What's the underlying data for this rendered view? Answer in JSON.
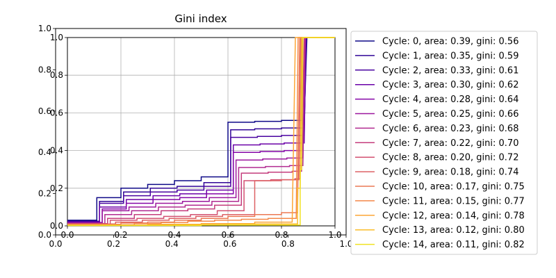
{
  "chart_data": {
    "type": "line",
    "title": "Gini index",
    "xlabel": "",
    "ylabel": "",
    "xlim": [
      0.0,
      1.0
    ],
    "ylim": [
      0.0,
      1.0
    ],
    "grid": true,
    "legend_position": "right",
    "x_ticks_outer": [
      "0.0",
      "0.2",
      "0.4",
      "0.6",
      "0.8",
      "1.0"
    ],
    "x_ticks_inner": [
      "0.0",
      "0.2",
      "0.4",
      "0.6",
      "0.8",
      "1.0"
    ],
    "y_ticks_outer": [
      "0.0",
      "0.2",
      "0.4",
      "0.6",
      "0.8",
      "1.0"
    ],
    "y_ticks_inner": [
      "0.0",
      "0.2",
      "0.4",
      "0.6",
      "0.8",
      "1.0"
    ],
    "series": [
      {
        "name": "Cycle: 0, area: 0.39, gini: 0.56",
        "color": "#0d0887",
        "points": [
          [
            0.0,
            0.03
          ],
          [
            0.11,
            0.03
          ],
          [
            0.11,
            0.15
          ],
          [
            0.2,
            0.15
          ],
          [
            0.2,
            0.2
          ],
          [
            0.3,
            0.2
          ],
          [
            0.3,
            0.22
          ],
          [
            0.4,
            0.22
          ],
          [
            0.4,
            0.24
          ],
          [
            0.5,
            0.24
          ],
          [
            0.5,
            0.26
          ],
          [
            0.6,
            0.26
          ],
          [
            0.6,
            0.55
          ],
          [
            0.7,
            0.55
          ],
          [
            0.7,
            0.555
          ],
          [
            0.8,
            0.555
          ],
          [
            0.8,
            0.56
          ],
          [
            0.885,
            0.56
          ],
          [
            0.895,
            1.0
          ],
          [
            1.0,
            1.0
          ]
        ]
      },
      {
        "name": "Cycle: 1, area: 0.35, gini: 0.59",
        "color": "#300597",
        "points": [
          [
            0.0,
            0.025
          ],
          [
            0.12,
            0.025
          ],
          [
            0.12,
            0.13
          ],
          [
            0.21,
            0.13
          ],
          [
            0.21,
            0.18
          ],
          [
            0.31,
            0.18
          ],
          [
            0.31,
            0.2
          ],
          [
            0.41,
            0.2
          ],
          [
            0.41,
            0.21
          ],
          [
            0.51,
            0.21
          ],
          [
            0.51,
            0.23
          ],
          [
            0.61,
            0.23
          ],
          [
            0.61,
            0.51
          ],
          [
            0.7,
            0.51
          ],
          [
            0.7,
            0.515
          ],
          [
            0.8,
            0.515
          ],
          [
            0.8,
            0.52
          ],
          [
            0.885,
            0.52
          ],
          [
            0.893,
            1.0
          ],
          [
            1.0,
            1.0
          ]
        ]
      },
      {
        "name": "Cycle: 2, area: 0.33, gini: 0.61",
        "color": "#4903a0",
        "points": [
          [
            0.0,
            0.022
          ],
          [
            0.12,
            0.022
          ],
          [
            0.12,
            0.12
          ],
          [
            0.21,
            0.12
          ],
          [
            0.21,
            0.16
          ],
          [
            0.31,
            0.16
          ],
          [
            0.31,
            0.18
          ],
          [
            0.41,
            0.18
          ],
          [
            0.41,
            0.19
          ],
          [
            0.51,
            0.19
          ],
          [
            0.51,
            0.21
          ],
          [
            0.61,
            0.21
          ],
          [
            0.61,
            0.47
          ],
          [
            0.71,
            0.47
          ],
          [
            0.71,
            0.475
          ],
          [
            0.8,
            0.475
          ],
          [
            0.8,
            0.48
          ],
          [
            0.885,
            0.48
          ],
          [
            0.892,
            1.0
          ],
          [
            1.0,
            1.0
          ]
        ]
      },
      {
        "name": "Cycle: 3, area: 0.30, gini: 0.62",
        "color": "#6a00a8",
        "points": [
          [
            0.0,
            0.02
          ],
          [
            0.12,
            0.02
          ],
          [
            0.12,
            0.1
          ],
          [
            0.22,
            0.1
          ],
          [
            0.22,
            0.14
          ],
          [
            0.32,
            0.14
          ],
          [
            0.32,
            0.16
          ],
          [
            0.42,
            0.16
          ],
          [
            0.42,
            0.17
          ],
          [
            0.52,
            0.17
          ],
          [
            0.52,
            0.19
          ],
          [
            0.62,
            0.19
          ],
          [
            0.62,
            0.43
          ],
          [
            0.72,
            0.43
          ],
          [
            0.72,
            0.435
          ],
          [
            0.81,
            0.435
          ],
          [
            0.81,
            0.44
          ],
          [
            0.885,
            0.44
          ],
          [
            0.891,
            1.0
          ],
          [
            1.0,
            1.0
          ]
        ]
      },
      {
        "name": "Cycle: 4, area: 0.28, gini: 0.64",
        "color": "#8405a7",
        "points": [
          [
            0.0,
            0.018
          ],
          [
            0.13,
            0.018
          ],
          [
            0.13,
            0.09
          ],
          [
            0.22,
            0.09
          ],
          [
            0.22,
            0.12
          ],
          [
            0.32,
            0.12
          ],
          [
            0.32,
            0.14
          ],
          [
            0.42,
            0.14
          ],
          [
            0.42,
            0.15
          ],
          [
            0.52,
            0.15
          ],
          [
            0.52,
            0.17
          ],
          [
            0.62,
            0.17
          ],
          [
            0.62,
            0.39
          ],
          [
            0.72,
            0.39
          ],
          [
            0.72,
            0.395
          ],
          [
            0.81,
            0.395
          ],
          [
            0.81,
            0.4
          ],
          [
            0.88,
            0.4
          ],
          [
            0.89,
            1.0
          ],
          [
            1.0,
            1.0
          ]
        ]
      },
      {
        "name": "Cycle: 5, area: 0.25, gini: 0.66",
        "color": "#9c179e",
        "points": [
          [
            0.0,
            0.015
          ],
          [
            0.13,
            0.015
          ],
          [
            0.13,
            0.08
          ],
          [
            0.23,
            0.08
          ],
          [
            0.23,
            0.1
          ],
          [
            0.33,
            0.1
          ],
          [
            0.33,
            0.12
          ],
          [
            0.43,
            0.12
          ],
          [
            0.43,
            0.13
          ],
          [
            0.53,
            0.13
          ],
          [
            0.53,
            0.15
          ],
          [
            0.63,
            0.15
          ],
          [
            0.63,
            0.35
          ],
          [
            0.73,
            0.35
          ],
          [
            0.73,
            0.355
          ],
          [
            0.82,
            0.355
          ],
          [
            0.82,
            0.36
          ],
          [
            0.88,
            0.36
          ],
          [
            0.889,
            1.0
          ],
          [
            1.0,
            1.0
          ]
        ]
      },
      {
        "name": "Cycle: 6, area: 0.23, gini: 0.68",
        "color": "#b12a90",
        "points": [
          [
            0.0,
            0.013
          ],
          [
            0.14,
            0.013
          ],
          [
            0.14,
            0.06
          ],
          [
            0.24,
            0.06
          ],
          [
            0.24,
            0.08
          ],
          [
            0.34,
            0.08
          ],
          [
            0.34,
            0.1
          ],
          [
            0.44,
            0.1
          ],
          [
            0.44,
            0.11
          ],
          [
            0.54,
            0.11
          ],
          [
            0.54,
            0.13
          ],
          [
            0.64,
            0.13
          ],
          [
            0.64,
            0.31
          ],
          [
            0.74,
            0.31
          ],
          [
            0.74,
            0.315
          ],
          [
            0.83,
            0.315
          ],
          [
            0.83,
            0.32
          ],
          [
            0.88,
            0.32
          ],
          [
            0.888,
            1.0
          ],
          [
            1.0,
            1.0
          ]
        ]
      },
      {
        "name": "Cycle: 7, area: 0.22, gini: 0.70",
        "color": "#c43c7c",
        "points": [
          [
            0.0,
            0.012
          ],
          [
            0.15,
            0.012
          ],
          [
            0.15,
            0.04
          ],
          [
            0.25,
            0.04
          ],
          [
            0.25,
            0.06
          ],
          [
            0.35,
            0.06
          ],
          [
            0.35,
            0.08
          ],
          [
            0.45,
            0.08
          ],
          [
            0.45,
            0.09
          ],
          [
            0.55,
            0.09
          ],
          [
            0.55,
            0.11
          ],
          [
            0.65,
            0.11
          ],
          [
            0.65,
            0.28
          ],
          [
            0.75,
            0.28
          ],
          [
            0.75,
            0.285
          ],
          [
            0.84,
            0.285
          ],
          [
            0.84,
            0.29
          ],
          [
            0.875,
            0.29
          ],
          [
            0.885,
            1.0
          ],
          [
            1.0,
            1.0
          ]
        ]
      },
      {
        "name": "Cycle: 8, area: 0.20, gini: 0.72",
        "color": "#d35171",
        "points": [
          [
            0.0,
            0.01
          ],
          [
            0.16,
            0.01
          ],
          [
            0.16,
            0.03
          ],
          [
            0.26,
            0.03
          ],
          [
            0.26,
            0.04
          ],
          [
            0.36,
            0.04
          ],
          [
            0.36,
            0.05
          ],
          [
            0.46,
            0.05
          ],
          [
            0.46,
            0.06
          ],
          [
            0.56,
            0.06
          ],
          [
            0.56,
            0.08
          ],
          [
            0.66,
            0.08
          ],
          [
            0.66,
            0.24
          ],
          [
            0.76,
            0.24
          ],
          [
            0.76,
            0.245
          ],
          [
            0.85,
            0.245
          ],
          [
            0.85,
            0.25
          ],
          [
            0.87,
            0.25
          ],
          [
            0.878,
            1.0
          ],
          [
            1.0,
            1.0
          ]
        ]
      },
      {
        "name": "Cycle: 9, area: 0.18, gini: 0.74",
        "color": "#de6164",
        "points": [
          [
            0.0,
            0.01
          ],
          [
            0.18,
            0.01
          ],
          [
            0.18,
            0.02
          ],
          [
            0.28,
            0.02
          ],
          [
            0.28,
            0.03
          ],
          [
            0.38,
            0.03
          ],
          [
            0.38,
            0.04
          ],
          [
            0.48,
            0.04
          ],
          [
            0.48,
            0.05
          ],
          [
            0.58,
            0.05
          ],
          [
            0.58,
            0.06
          ],
          [
            0.7,
            0.06
          ],
          [
            0.7,
            0.24
          ],
          [
            0.8,
            0.24
          ],
          [
            0.8,
            0.245
          ],
          [
            0.865,
            0.245
          ],
          [
            0.872,
            1.0
          ],
          [
            1.0,
            1.0
          ]
        ]
      },
      {
        "name": "Cycle: 10, area: 0.17, gini: 0.75",
        "color": "#ec7853",
        "points": [
          [
            0.0,
            0.008
          ],
          [
            0.2,
            0.008
          ],
          [
            0.2,
            0.015
          ],
          [
            0.3,
            0.015
          ],
          [
            0.3,
            0.02
          ],
          [
            0.4,
            0.02
          ],
          [
            0.4,
            0.03
          ],
          [
            0.5,
            0.03
          ],
          [
            0.5,
            0.04
          ],
          [
            0.6,
            0.04
          ],
          [
            0.6,
            0.05
          ],
          [
            0.7,
            0.05
          ],
          [
            0.7,
            0.06
          ],
          [
            0.8,
            0.06
          ],
          [
            0.8,
            0.07
          ],
          [
            0.86,
            0.07
          ],
          [
            0.868,
            1.0
          ],
          [
            1.0,
            1.0
          ]
        ]
      },
      {
        "name": "Cycle: 11, area: 0.15, gini: 0.77",
        "color": "#f48849",
        "points": [
          [
            0.0,
            0.006
          ],
          [
            0.25,
            0.006
          ],
          [
            0.25,
            0.012
          ],
          [
            0.35,
            0.012
          ],
          [
            0.35,
            0.018
          ],
          [
            0.45,
            0.018
          ],
          [
            0.45,
            0.025
          ],
          [
            0.55,
            0.025
          ],
          [
            0.55,
            0.03
          ],
          [
            0.65,
            0.03
          ],
          [
            0.65,
            0.035
          ],
          [
            0.75,
            0.035
          ],
          [
            0.75,
            0.04
          ],
          [
            0.855,
            0.04
          ],
          [
            0.862,
            1.0
          ],
          [
            1.0,
            1.0
          ]
        ]
      },
      {
        "name": "Cycle: 12, area: 0.14, gini: 0.78",
        "color": "#fca636",
        "points": [
          [
            0.0,
            0.004
          ],
          [
            0.3,
            0.004
          ],
          [
            0.3,
            0.008
          ],
          [
            0.5,
            0.008
          ],
          [
            0.5,
            0.012
          ],
          [
            0.7,
            0.012
          ],
          [
            0.7,
            0.02
          ],
          [
            0.84,
            0.02
          ],
          [
            0.852,
            1.0
          ],
          [
            1.0,
            1.0
          ]
        ]
      },
      {
        "name": "Cycle: 13, area: 0.12, gini: 0.80",
        "color": "#fbbc29",
        "points": [
          [
            0.0,
            0.003
          ],
          [
            0.4,
            0.003
          ],
          [
            0.4,
            0.006
          ],
          [
            0.6,
            0.006
          ],
          [
            0.6,
            0.01
          ],
          [
            0.86,
            0.01
          ],
          [
            0.86,
            0.2
          ],
          [
            0.87,
            0.2
          ],
          [
            0.875,
            1.0
          ],
          [
            1.0,
            1.0
          ]
        ]
      },
      {
        "name": "Cycle: 14, area: 0.11, gini: 0.82",
        "color": "#f0e221",
        "points": [
          [
            0.0,
            0.002
          ],
          [
            0.5,
            0.002
          ],
          [
            0.5,
            0.004
          ],
          [
            0.87,
            0.004
          ],
          [
            0.87,
            0.3
          ],
          [
            0.875,
            0.3
          ],
          [
            0.88,
            1.0
          ],
          [
            1.0,
            1.0
          ]
        ]
      }
    ]
  }
}
